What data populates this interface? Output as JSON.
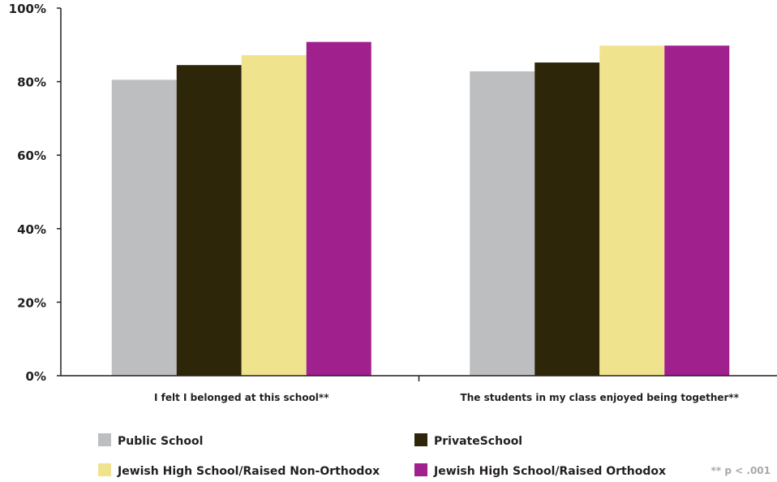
{
  "chart_data": {
    "type": "bar",
    "categories": [
      "I felt I belonged at this school**",
      "The students in my class enjoyed being together**"
    ],
    "series": [
      {
        "name": "Public School",
        "color": "#bcbec0",
        "values": [
          80.5,
          82.8
        ]
      },
      {
        "name": "PrivateSchool",
        "color": "#2e2608",
        "values": [
          84.5,
          85.2
        ]
      },
      {
        "name": "Jewish High School/Raised Non-Orthodox",
        "color": "#f0e38e",
        "values": [
          87.2,
          89.8
        ]
      },
      {
        "name": "Jewish High School/Raised Orthodox",
        "color": "#a0208e",
        "values": [
          90.8,
          89.8
        ]
      }
    ],
    "ylim": [
      0,
      100
    ],
    "yticks": [
      0,
      20,
      40,
      60,
      80,
      100
    ],
    "ytick_labels": [
      "0%",
      "20%",
      "40%",
      "60%",
      "80%",
      "100%"
    ],
    "grid": false,
    "legend_position": "bottom",
    "note": "** p < .001"
  }
}
